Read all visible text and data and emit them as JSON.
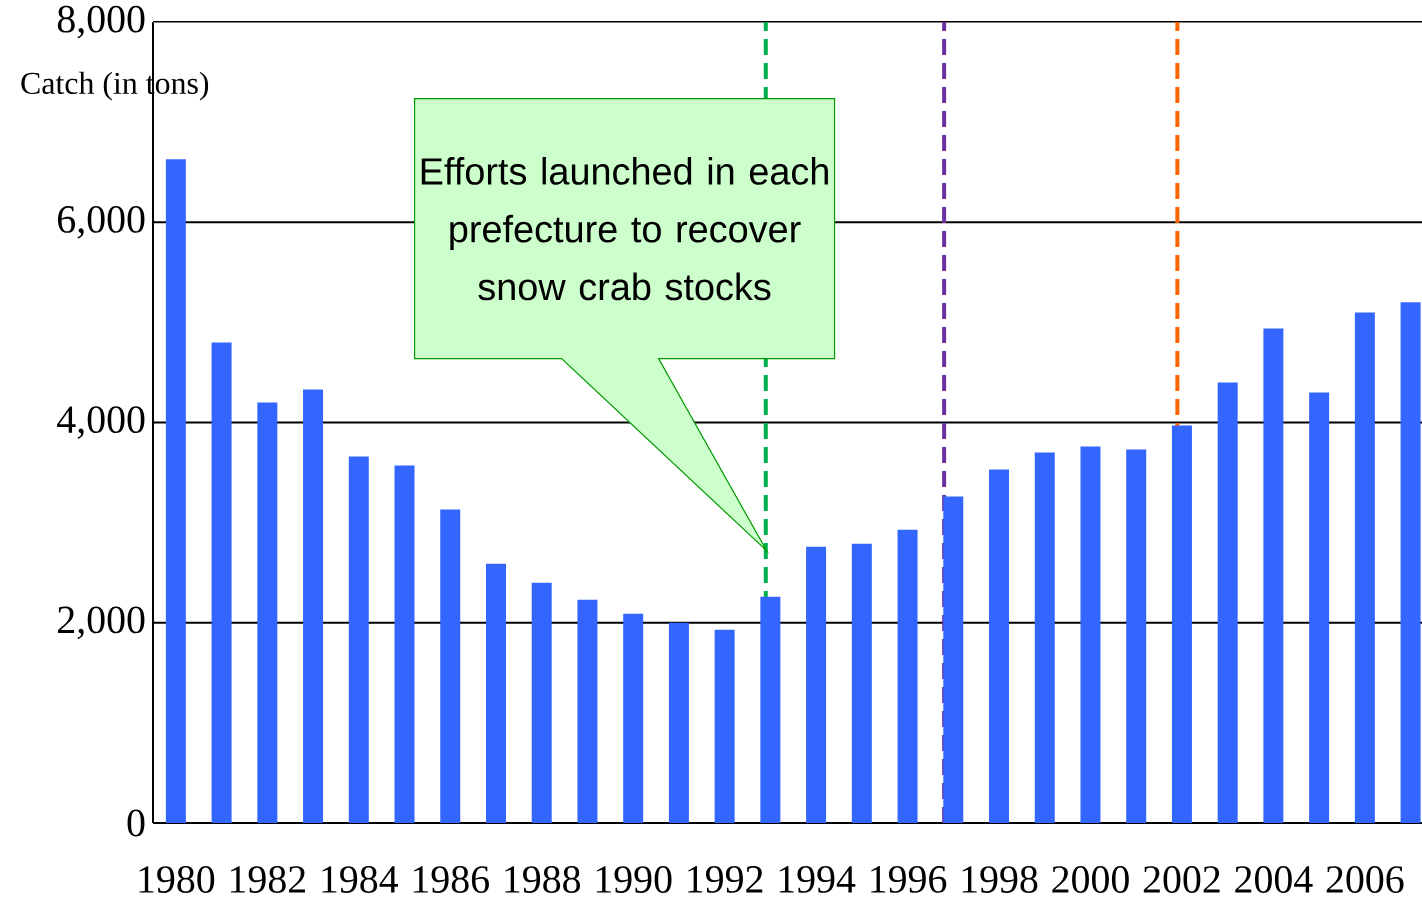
{
  "chart_data": {
    "type": "bar",
    "ylabel": "Catch (in tons)",
    "x": [
      1980,
      1981,
      1982,
      1983,
      1984,
      1985,
      1986,
      1987,
      1988,
      1989,
      1990,
      1991,
      1992,
      1993,
      1994,
      1995,
      1996,
      1997,
      1998,
      1999,
      2000,
      2001,
      2002,
      2003,
      2004,
      2005,
      2006,
      2007
    ],
    "values": [
      6630,
      4800,
      4200,
      4330,
      3660,
      3570,
      3130,
      2590,
      2400,
      2230,
      2090,
      2000,
      1930,
      2260,
      2760,
      2790,
      2930,
      3260,
      3530,
      3700,
      3760,
      3730,
      3970,
      4400,
      4940,
      4300,
      5100,
      5200
    ],
    "color": "#3366ff",
    "xlim": [
      1979.5,
      2007.25
    ],
    "xticks": [
      1980,
      1982,
      1984,
      1986,
      1988,
      1990,
      1992,
      1994,
      1996,
      1998,
      2000,
      2002,
      2004,
      2006
    ],
    "ylim": [
      0,
      8000
    ],
    "yticks": [
      0,
      {
        "value": 2000,
        "label": "2,000"
      },
      {
        "value": 4000,
        "label": "4,000"
      },
      {
        "value": 6000,
        "label": "6,000"
      },
      {
        "value": 8000,
        "label": "8,000"
      }
    ],
    "grid": "y",
    "ref_lines": [
      {
        "axis": "x",
        "value": 1992.9,
        "color": "#00b050",
        "line_style": "dashed"
      },
      {
        "axis": "x",
        "value": 1996.8,
        "color": "#7030a0",
        "line_style": "dashed"
      },
      {
        "axis": "x",
        "value": 2001.9,
        "color": "#ff6600",
        "line_style": "dashed"
      }
    ],
    "annotations": [
      "Efforts launched in each prefecture to recover snow crab stocks"
    ]
  }
}
